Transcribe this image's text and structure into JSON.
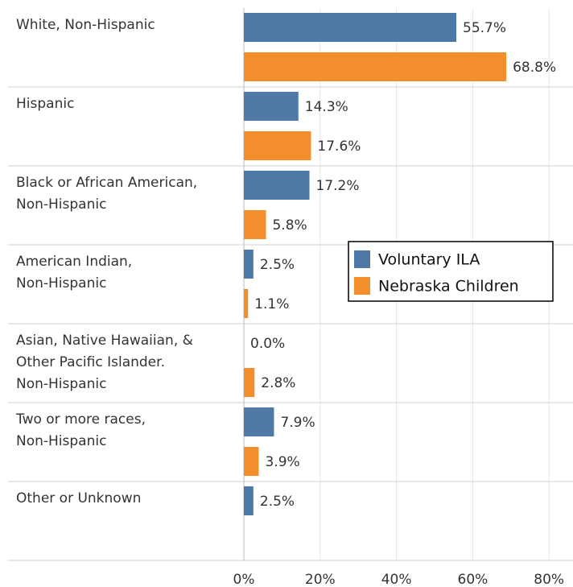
{
  "chart_data": {
    "type": "bar",
    "orientation": "horizontal",
    "categories": [
      "White, Non-Hispanic",
      "Hispanic",
      "Black or African American,\nNon-Hispanic",
      "American Indian,\nNon-Hispanic",
      "Asian, Native Hawaiian, &\nOther Pacific Islander.\nNon-Hispanic",
      "Two or more races,\nNon-Hispanic",
      "Other or Unknown"
    ],
    "series": [
      {
        "name": "Voluntary ILA",
        "color": "#4e79a7",
        "values": [
          55.7,
          14.3,
          17.2,
          2.5,
          0.0,
          7.9,
          2.5
        ],
        "value_labels": [
          "55.7%",
          "14.3%",
          "17.2%",
          "2.5%",
          "0.0%",
          "7.9%",
          "2.5%"
        ]
      },
      {
        "name": "Nebraska Children",
        "color": "#f28e2b",
        "values": [
          68.8,
          17.6,
          5.8,
          1.1,
          2.8,
          3.9,
          null
        ],
        "value_labels": [
          "68.8%",
          "17.6%",
          "5.8%",
          "1.1%",
          "2.8%",
          "3.9%",
          null
        ]
      }
    ],
    "xlim": [
      0,
      86
    ],
    "xticks": [
      {
        "value": 0,
        "label": "0%"
      },
      {
        "value": 20,
        "label": "20%"
      },
      {
        "value": 40,
        "label": "40%"
      },
      {
        "value": 60,
        "label": "60%"
      },
      {
        "value": 80,
        "label": "80%"
      }
    ],
    "grid": true,
    "legend": "right"
  }
}
